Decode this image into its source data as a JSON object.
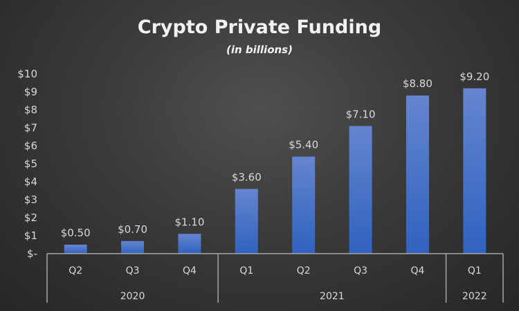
{
  "chart_data": {
    "type": "bar",
    "title": "Crypto Private Funding",
    "subtitle": "(in billions)",
    "categories": [
      "Q2",
      "Q3",
      "Q4",
      "Q1",
      "Q2",
      "Q3",
      "Q4",
      "Q1"
    ],
    "groups": [
      {
        "label": "2020",
        "count": 3
      },
      {
        "label": "2021",
        "count": 4
      },
      {
        "label": "2022",
        "count": 1
      }
    ],
    "values": [
      0.5,
      0.7,
      1.1,
      3.6,
      5.4,
      7.1,
      8.8,
      9.2
    ],
    "data_labels": [
      "$0.50",
      "$0.70",
      "$1.10",
      "$3.60",
      "$5.40",
      "$7.10",
      "$8.80",
      "$9.20"
    ],
    "ylim": [
      0,
      10
    ],
    "yticks": [
      0,
      1,
      2,
      3,
      4,
      5,
      6,
      7,
      8,
      9,
      10
    ],
    "ytick_labels": [
      "$-",
      "$1",
      "$2",
      "$3",
      "$4",
      "$5",
      "$6",
      "$7",
      "$8",
      "$9",
      "$10"
    ],
    "xlabel": "",
    "ylabel": "",
    "grid": false,
    "legend": "none",
    "colors": {
      "bar_top": "#6585cf",
      "bar_bottom": "#2f62bf",
      "axis": "#a6a6a6"
    }
  }
}
